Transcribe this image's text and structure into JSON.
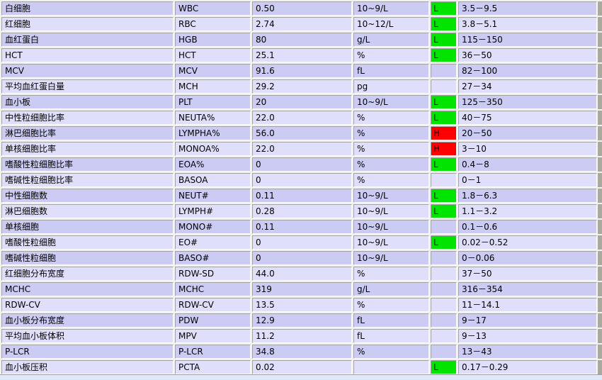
{
  "app": {
    "description": "blood-test-results-grid",
    "flag_values": {
      "low": "L",
      "high": "H"
    }
  },
  "colors": {
    "flag_low_bg": "#00e400",
    "flag_high_bg": "#ff0000",
    "row_dark_bg": "#cbcbf3",
    "row_light_bg": "#dfdffb",
    "cell_border_dark": "#a2a2a2",
    "cell_border_light": "#fbfbfb",
    "bottom_strip_bg": "#dde9f8",
    "right_strip_bg": "#a9a9a0"
  },
  "table": {
    "rows": [
      {
        "name": "白细胞",
        "code": "WBC",
        "value": "0.50",
        "unit": "10~9/L",
        "flag": "L",
        "range": "3.5－9.5"
      },
      {
        "name": "红细胞",
        "code": "RBC",
        "value": "2.74",
        "unit": "10~12/L",
        "flag": "L",
        "range": "3.8－5.1"
      },
      {
        "name": "血红蛋白",
        "code": "HGB",
        "value": "80",
        "unit": "g/L",
        "flag": "L",
        "range": "115－150"
      },
      {
        "name": "HCT",
        "code": "HCT",
        "value": "25.1",
        "unit": "%",
        "flag": "L",
        "range": "36－50"
      },
      {
        "name": "MCV",
        "code": "MCV",
        "value": "91.6",
        "unit": "fL",
        "flag": "",
        "range": "82－100"
      },
      {
        "name": "平均血红蛋白量",
        "code": "MCH",
        "value": "29.2",
        "unit": "pg",
        "flag": "",
        "range": "27－34"
      },
      {
        "name": "血小板",
        "code": "PLT",
        "value": "20",
        "unit": "10~9/L",
        "flag": "L",
        "range": "125－350"
      },
      {
        "name": "中性粒细胞比率",
        "code": "NEUTA%",
        "value": "22.0",
        "unit": "%",
        "flag": "L",
        "range": "40－75"
      },
      {
        "name": "淋巴细胞比率",
        "code": "LYMPHA%",
        "value": "56.0",
        "unit": "%",
        "flag": "H",
        "range": "20－50"
      },
      {
        "name": "单核细胞比率",
        "code": "MONOA%",
        "value": "22.0",
        "unit": "%",
        "flag": "H",
        "range": "3－10"
      },
      {
        "name": "嗜酸性粒细胞比率",
        "code": "EOA%",
        "value": "0",
        "unit": "%",
        "flag": "L",
        "range": "0.4－8"
      },
      {
        "name": "嗜碱性粒细胞比率",
        "code": "BASOA",
        "value": "0",
        "unit": "%",
        "flag": "",
        "range": "0－1"
      },
      {
        "name": "中性细胞数",
        "code": "NEUT#",
        "value": "0.11",
        "unit": "10~9/L",
        "flag": "L",
        "range": "1.8－6.3"
      },
      {
        "name": "淋巴细胞数",
        "code": "LYMPH#",
        "value": "0.28",
        "unit": "10~9/L",
        "flag": "L",
        "range": "1.1－3.2"
      },
      {
        "name": "单核细胞",
        "code": "MONO#",
        "value": "0.11",
        "unit": "10~9/L",
        "flag": "",
        "range": "0.1－0.6"
      },
      {
        "name": "嗜酸性粒细胞",
        "code": "EO#",
        "value": "0",
        "unit": "10~9/L",
        "flag": "L",
        "range": "0.02－0.52"
      },
      {
        "name": "嗜碱性粒细胞",
        "code": "BASO#",
        "value": "0",
        "unit": "10~9/L",
        "flag": "",
        "range": "0－0.06"
      },
      {
        "name": "红细胞分布宽度",
        "code": "RDW-SD",
        "value": "44.0",
        "unit": "%",
        "flag": "",
        "range": "37－50"
      },
      {
        "name": "MCHC",
        "code": "MCHC",
        "value": "319",
        "unit": "g/L",
        "flag": "",
        "range": "316－354"
      },
      {
        "name": "RDW-CV",
        "code": "RDW-CV",
        "value": "13.5",
        "unit": "%",
        "flag": "",
        "range": "11－14.1"
      },
      {
        "name": "血小板分布宽度",
        "code": "PDW",
        "value": "12.9",
        "unit": "fL",
        "flag": "",
        "range": "9－17"
      },
      {
        "name": "平均血小板体积",
        "code": "MPV",
        "value": "11.2",
        "unit": "fL",
        "flag": "",
        "range": "9－13"
      },
      {
        "name": "P-LCR",
        "code": "P-LCR",
        "value": "34.8",
        "unit": "%",
        "flag": "",
        "range": "13－43"
      },
      {
        "name": "血小板压积",
        "code": "PCTA",
        "value": "0.02",
        "unit": "",
        "flag": "L",
        "range": "0.17－0.29"
      }
    ]
  }
}
